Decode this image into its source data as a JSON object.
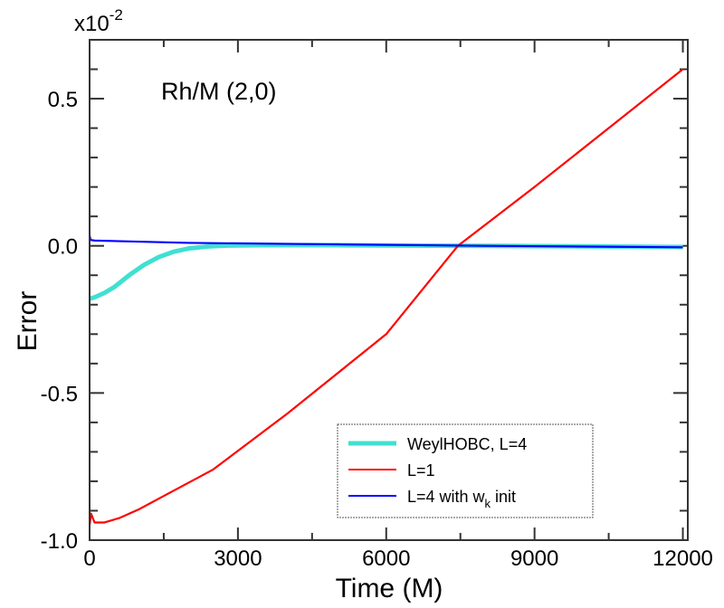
{
  "chart_data": {
    "type": "line",
    "title": "",
    "annotation": "Rh/M (2,0)",
    "xlabel": "Time (M)",
    "ylabel": "Error",
    "y_multiplier": "x10",
    "y_multiplier_exp": "-2",
    "xlim": [
      0,
      12100
    ],
    "ylim": [
      -1.0,
      0.7
    ],
    "xticks": [
      0,
      3000,
      6000,
      9000,
      12000
    ],
    "xtick_labels": [
      "0",
      "3000",
      "6000",
      "9000",
      "12000"
    ],
    "yticks": [
      -1.0,
      -0.5,
      0.0,
      0.5
    ],
    "ytick_labels": [
      "-1.0",
      "-0.5",
      "0.0",
      "0.5"
    ],
    "grid": false,
    "legend_placement": "bottom-right",
    "series": [
      {
        "name": "WeylHOBC, L=4",
        "color": "#40e0d0",
        "x": [
          0,
          100,
          300,
          500,
          800,
          1100,
          1400,
          1700,
          2000,
          2400,
          2800,
          3500,
          5000,
          8000,
          12000
        ],
        "y": [
          -0.18,
          -0.175,
          -0.16,
          -0.14,
          -0.1,
          -0.065,
          -0.038,
          -0.02,
          -0.009,
          -0.002,
          0.001,
          0.002,
          0.002,
          0.0,
          -0.004
        ]
      },
      {
        "name": "L=1",
        "color": "#ff0000",
        "x": [
          0,
          30,
          100,
          300,
          600,
          1000,
          1500,
          2500,
          4000,
          6000,
          7450,
          9000,
          12000
        ],
        "y": [
          -0.95,
          -0.91,
          -0.94,
          -0.94,
          -0.925,
          -0.895,
          -0.85,
          -0.76,
          -0.57,
          -0.3,
          0.0,
          0.2,
          0.6
        ]
      },
      {
        "name": "L = 4 with w_k init",
        "label_main": "L=4 with w",
        "label_sub": "k",
        "label_tail": " init",
        "color": "#0000ff",
        "x": [
          0,
          20,
          100,
          2000,
          5000,
          8000,
          12000
        ],
        "y": [
          0.035,
          0.02,
          0.018,
          0.01,
          0.005,
          0.0,
          -0.005
        ]
      }
    ]
  }
}
